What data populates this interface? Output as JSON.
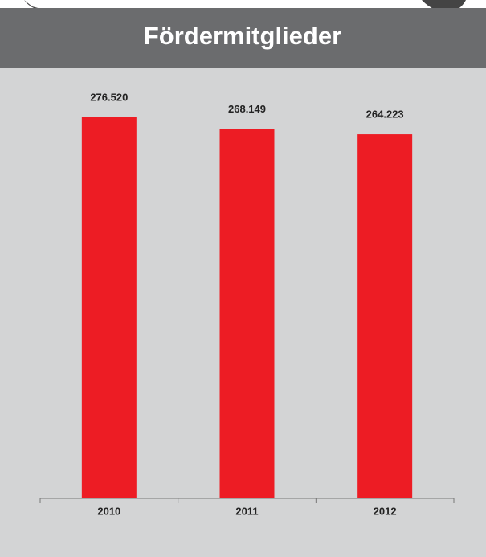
{
  "chart_data": {
    "type": "bar",
    "title": "Fördermitglieder",
    "categories": [
      "2010",
      "2011",
      "2012"
    ],
    "values": [
      276520,
      268149,
      264223
    ],
    "value_labels": [
      "276.520",
      "268.149",
      "264.223"
    ],
    "color": "#ed1c24"
  }
}
